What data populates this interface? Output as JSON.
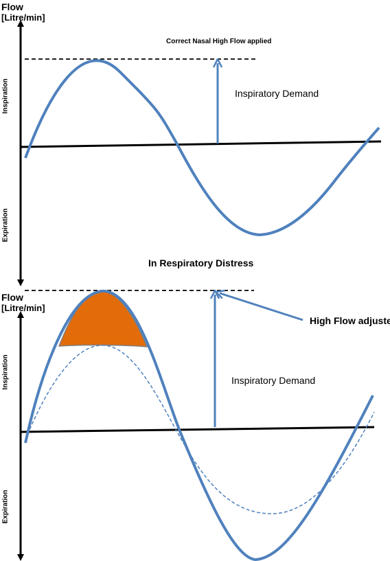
{
  "top_panel": {
    "y_label_line1": "Flow",
    "y_label_line2": "[Litre/min]",
    "inspiration_label": "Inspiration",
    "expiration_label": "Expiration",
    "title": "Correct Nasal High Flow applied",
    "demand_label": "Inspiratory Demand"
  },
  "section_title": "In Respiratory Distress",
  "bottom_panel": {
    "y_label_line1": "Flow",
    "y_label_line2": "[Litre/min]",
    "inspiration_label": "Inspiration",
    "expiration_label": "Expiration",
    "demand_label": "Inspiratory Demand",
    "high_flow_label": "High Flow adjusted"
  },
  "colors": {
    "curve": "#4f81bd",
    "deficit_fill": "#e36c0a",
    "axis": "#000000"
  }
}
